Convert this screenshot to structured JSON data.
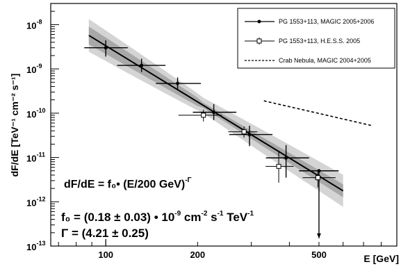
{
  "chart_data": {
    "type": "scatter",
    "x_scale": "log",
    "y_scale": "log",
    "xlim": [
      66,
      900
    ],
    "ylim": [
      1e-13,
      3e-08
    ],
    "xlabel": "E [GeV]",
    "ylabel": "dF/dE [TeV⁻¹ cm⁻² s⁻¹]",
    "x_tick_labels": [
      {
        "value": 100,
        "label": "100"
      },
      {
        "value": 200,
        "label": "200"
      },
      {
        "value": 500,
        "label": "500"
      }
    ],
    "y_tick_labels": [
      {
        "value": 1e-08,
        "label": "10",
        "exp": "-8"
      },
      {
        "value": 1e-09,
        "label": "10",
        "exp": "-9"
      },
      {
        "value": 1e-10,
        "label": "10",
        "exp": "-10"
      },
      {
        "value": 1e-11,
        "label": "10",
        "exp": "-11"
      },
      {
        "value": 1e-12,
        "label": "10",
        "exp": "-12"
      },
      {
        "value": 1e-13,
        "label": "10",
        "exp": "-13"
      }
    ],
    "grid": false,
    "legend_position": "top-right",
    "series": [
      {
        "name": "PG 1553+113, MAGIC 2005+2006",
        "marker": "filled-circle",
        "color": "#000000",
        "points": [
          {
            "x": 100,
            "y": 3e-09,
            "xlo": 85,
            "xhi": 118,
            "ylo": 1.9e-09,
            "yhi": 4.4e-09
          },
          {
            "x": 131,
            "y": 1.2e-09,
            "xlo": 109,
            "xhi": 157,
            "ylo": 8.5e-10,
            "yhi": 1.7e-09
          },
          {
            "x": 172,
            "y": 4.7e-10,
            "xlo": 146,
            "xhi": 205,
            "ylo": 3.5e-10,
            "yhi": 6.4e-10
          },
          {
            "x": 226,
            "y": 1.05e-10,
            "xlo": 193,
            "xhi": 268,
            "ylo": 7e-11,
            "yhi": 1.6e-10
          },
          {
            "x": 296,
            "y": 3.3e-11,
            "xlo": 254,
            "xhi": 352,
            "ylo": 1.8e-11,
            "yhi": 5.2e-11
          },
          {
            "x": 390,
            "y": 9.8e-12,
            "xlo": 335,
            "xhi": 464,
            "ylo": 3.5e-12,
            "yhi": 1.9e-11
          },
          {
            "x": 500,
            "y": 5e-12,
            "xlo": 430,
            "xhi": 580,
            "ylo": 1.5e-13,
            "yhi": 5e-12,
            "upper_limit": true
          }
        ]
      },
      {
        "name": "PG 1553+113, H.E.S.S. 2005",
        "marker": "open-cross",
        "color": "#000000",
        "points": [
          {
            "x": 209,
            "y": 9e-11,
            "xlo": 173,
            "xhi": 240,
            "ylo": 6.5e-11,
            "yhi": 1.2e-10
          },
          {
            "x": 284,
            "y": 3.8e-11,
            "xlo": 252,
            "xhi": 314,
            "ylo": 2.8e-11,
            "yhi": 5e-11
          },
          {
            "x": 369,
            "y": 6.3e-12,
            "xlo": 334,
            "xhi": 413,
            "ylo": 2.7e-12,
            "yhi": 1.4e-11
          },
          {
            "x": 496,
            "y": 3.5e-12,
            "xlo": 442,
            "xhi": 567,
            "ylo": 2.1e-12,
            "yhi": 5.2e-12
          }
        ]
      },
      {
        "name": "Crab Nebula, MAGIC 2004+2005",
        "line_style": "dashed",
        "color": "#000000",
        "points": [
          {
            "x": 330,
            "y": 1.9e-10
          },
          {
            "x": 750,
            "y": 5.2e-11
          }
        ]
      }
    ],
    "fit": {
      "f0": 1.8e-10,
      "index": 4.21,
      "pivot": 200,
      "x_range": [
        88,
        600
      ],
      "band_inner_factor_left": 1.7,
      "band_inner_factor_right": 1.4,
      "band_outer_factor_left": 2.6,
      "band_outer_factor_right": 2.3,
      "band_outer_color": "#d4d4d4",
      "band_inner_color": "#a8a8a8",
      "line_color": "#000000"
    },
    "annotations": [
      {
        "id": "formula",
        "text": "dF/dE = f₀• (E/200 GeV)",
        "sup": "-Γ"
      },
      {
        "id": "f0",
        "text": "f₀ = (0.18 ± 0.03) • 10",
        "sup1": "-9",
        "mid": " cm",
        "sup2": "-2",
        "mid2": " s",
        "sup3": "-1",
        "tail": " TeV",
        "sup4": "-1"
      },
      {
        "id": "gamma",
        "text": "Γ = (4.21 ± 0.25)"
      }
    ]
  }
}
